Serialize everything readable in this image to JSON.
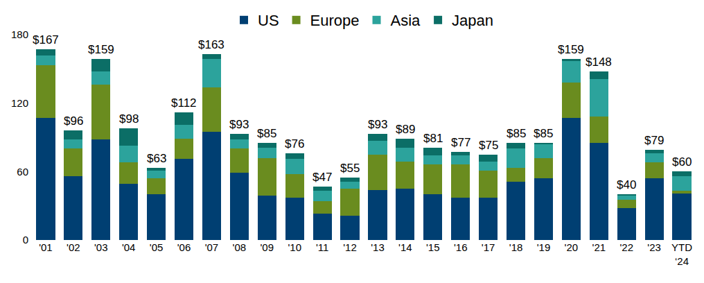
{
  "chart_data": {
    "type": "bar",
    "stacked": true,
    "legend": "top",
    "grid": false,
    "categories": [
      "'01",
      "'02",
      "'03",
      "'04",
      "'05",
      "'06",
      "'07",
      "'08",
      "'09",
      "'10",
      "'11",
      "'12",
      "'13",
      "'14",
      "'15",
      "'16",
      "'17",
      "'18",
      "'19",
      "'20",
      "'21",
      "'22",
      "'23",
      "YTD ‘24"
    ],
    "series": [
      {
        "name": "US",
        "color": "#003f72",
        "values": [
          107,
          56,
          88,
          49,
          40,
          71,
          95,
          59,
          39,
          37,
          23,
          21,
          44,
          45,
          40,
          37,
          37,
          51,
          54,
          107,
          85,
          28,
          54,
          41
        ]
      },
      {
        "name": "Europe",
        "color": "#6a8c1f",
        "values": [
          46,
          24,
          48,
          19,
          14,
          18,
          39,
          21,
          33,
          21,
          11,
          24,
          31,
          24,
          26,
          29,
          24,
          12,
          18,
          31,
          23,
          7,
          14,
          2
        ]
      },
      {
        "name": "Asia",
        "color": "#2ca39c",
        "values": [
          9,
          8,
          12,
          15,
          7,
          12,
          25,
          8,
          9,
          13,
          9,
          6,
          12,
          12,
          8,
          8,
          8,
          17,
          12,
          19,
          33,
          4,
          8,
          13
        ]
      },
      {
        "name": "Japan",
        "color": "#0b6e66",
        "values": [
          5,
          8,
          11,
          15,
          2,
          11,
          4,
          5,
          4,
          5,
          4,
          4,
          6,
          8,
          7,
          3,
          6,
          5,
          1,
          2,
          7,
          1,
          3,
          4
        ]
      }
    ],
    "totals": [
      167,
      96,
      159,
      98,
      63,
      112,
      163,
      93,
      85,
      76,
      47,
      55,
      93,
      89,
      81,
      77,
      75,
      85,
      85,
      159,
      148,
      40,
      79,
      60
    ],
    "total_labels": [
      "$167",
      "$96",
      "$159",
      "$98",
      "$63",
      "$112",
      "$163",
      "$93",
      "$85",
      "$76",
      "$47",
      "$55",
      "$93",
      "$89",
      "$81",
      "$77",
      "$75",
      "$85",
      "$85",
      "$159",
      "$148",
      "$40",
      "$79",
      "$60"
    ],
    "ylim": [
      0,
      180
    ],
    "yticks": [
      0,
      60,
      120,
      180
    ]
  }
}
